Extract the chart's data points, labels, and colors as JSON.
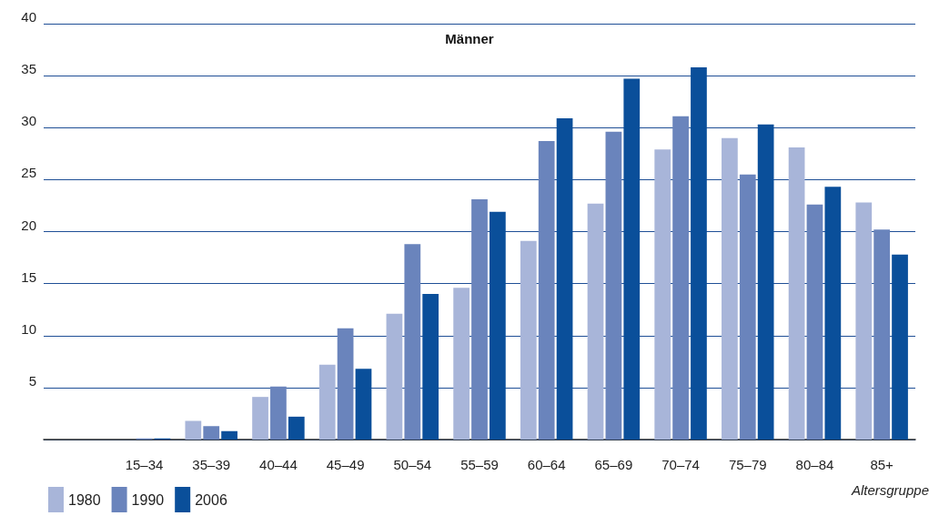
{
  "chart_data": {
    "type": "bar",
    "title": "Männer",
    "xlabel": "Altersgruppe",
    "categories": [
      null,
      "15–34",
      "35–39",
      "40–44",
      "45–49",
      "50–54",
      "55–59",
      "60–64",
      "65–69",
      "70–74",
      "75–79",
      "80–84",
      "85+"
    ],
    "series": [
      {
        "name": "1980",
        "color": "#a8b5d9",
        "values": [
          null,
          null,
          1.8,
          4.1,
          7.2,
          12.1,
          14.6,
          19.1,
          22.7,
          27.9,
          29.0,
          28.1,
          22.8
        ]
      },
      {
        "name": "1990",
        "color": "#6a84bc",
        "values": [
          null,
          0.1,
          1.3,
          5.1,
          10.7,
          18.8,
          23.1,
          28.7,
          29.6,
          31.1,
          25.5,
          22.6,
          20.2
        ]
      },
      {
        "name": "2006",
        "color": "#0a4f9a",
        "values": [
          null,
          0.1,
          0.8,
          2.2,
          6.8,
          14.0,
          21.9,
          30.9,
          34.7,
          35.8,
          30.3,
          24.3,
          17.8
        ]
      }
    ],
    "ylim": [
      0,
      40
    ],
    "yticks": [
      {
        "value": 0,
        "label": null
      },
      5,
      10,
      15,
      20,
      25,
      30,
      35,
      40
    ],
    "grid": "y",
    "legend": "bottom left"
  }
}
